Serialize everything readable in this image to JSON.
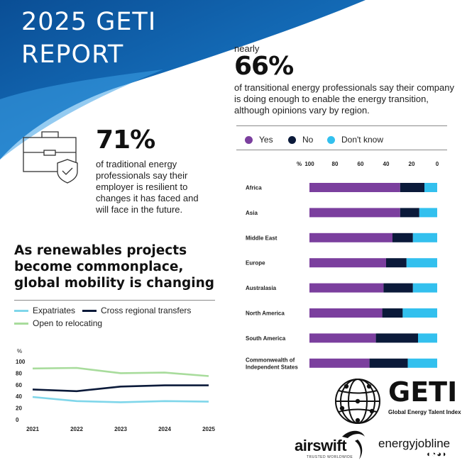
{
  "header": {
    "title_line1": "2025 GETI",
    "title_line2": "REPORT"
  },
  "stat_main": {
    "prefix": "nearly",
    "value": "66%",
    "text": "of transitional energy professionals say their company is doing enough to enable the energy transition, although opinions vary by region."
  },
  "stat_side": {
    "value": "71%",
    "text": "of traditional energy professionals say their employer is resilient to changes it has faced and will face in the future.",
    "icon": "briefcase-shield-icon"
  },
  "mobility_headline": "As renewables projects become commonplace, global mobility is changing",
  "colors": {
    "banner_dark": "#0a5ca8",
    "banner_light": "#2e8fd9",
    "yes": "#7b3f9e",
    "no": "#0b1a3a",
    "dont_know": "#33c0ee",
    "expatriates": "#7fd6ea",
    "cross_regional": "#0b1a3a",
    "open_to_relocating": "#a8dc9c"
  },
  "chart_data": [
    {
      "type": "bar",
      "orientation": "horizontal-stacked",
      "x_unit": "%",
      "x_ticks": [
        "100",
        "80",
        "60",
        "40",
        "20",
        "0"
      ],
      "xlim": [
        100,
        0
      ],
      "legend_position": "top",
      "categories": [
        "Africa",
        "Asia",
        "Middle East",
        "Europe",
        "Australasia",
        "North America",
        "South America",
        "Commonwealth of Independent States"
      ],
      "series": [
        {
          "name": "Yes",
          "values": [
            71,
            71,
            65,
            60,
            58,
            57,
            52,
            47
          ]
        },
        {
          "name": "No",
          "values": [
            19,
            15,
            16,
            16,
            23,
            16,
            33,
            30
          ]
        },
        {
          "name": "Don't know",
          "values": [
            10,
            14,
            19,
            24,
            19,
            27,
            15,
            23
          ]
        }
      ]
    },
    {
      "type": "line",
      "y_unit": "%",
      "x": [
        "2021",
        "2022",
        "2023",
        "2024",
        "2025"
      ],
      "y_ticks": [
        "100",
        "80",
        "60",
        "40",
        "20",
        "0"
      ],
      "ylim": [
        0,
        100
      ],
      "legend_position": "top",
      "series": [
        {
          "name": "Expatriates",
          "values": [
            39,
            32,
            30,
            32,
            31
          ]
        },
        {
          "name": "Cross regional transfers",
          "values": [
            52,
            49,
            57,
            59,
            59
          ]
        },
        {
          "name": "Open to relocating",
          "values": [
            88,
            89,
            80,
            81,
            75
          ]
        }
      ]
    }
  ],
  "logos": {
    "geti_name": "GETI",
    "geti_sub": "Global Energy Talent Index",
    "airswift": "airswift",
    "airswift_tagline": "TRUSTED WORLDWIDE",
    "energyjobline": "energyjobline",
    "energyjobline_mark": "◖◔◕◗"
  }
}
